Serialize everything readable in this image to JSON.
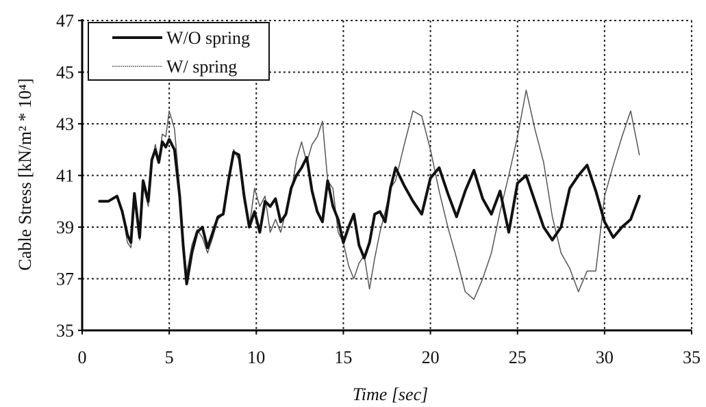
{
  "chart_data": {
    "type": "line",
    "title": "",
    "xlabel": "Time [sec]",
    "ylabel": "Cable Stress [kN/m² * 10⁴]",
    "xlim": [
      0,
      35
    ],
    "ylim": [
      35,
      47
    ],
    "xticks": [
      0,
      5,
      10,
      15,
      20,
      25,
      30,
      35
    ],
    "yticks": [
      35,
      37,
      39,
      41,
      43,
      45,
      47
    ],
    "grid": true,
    "legend_position": "top-left",
    "series": [
      {
        "name": "W/O spring",
        "color": "#111111",
        "style": "thick",
        "x": [
          1.0,
          1.5,
          2.0,
          2.3,
          2.6,
          2.8,
          3.0,
          3.3,
          3.5,
          3.8,
          4.0,
          4.2,
          4.4,
          4.6,
          4.8,
          5.0,
          5.3,
          5.6,
          5.8,
          6.0,
          6.3,
          6.6,
          6.9,
          7.2,
          7.5,
          7.8,
          8.1,
          8.4,
          8.7,
          9.0,
          9.3,
          9.6,
          9.9,
          10.2,
          10.5,
          10.8,
          11.1,
          11.4,
          11.7,
          12.0,
          12.3,
          12.6,
          12.9,
          13.2,
          13.5,
          13.8,
          14.1,
          14.4,
          14.7,
          15.0,
          15.3,
          15.6,
          15.9,
          16.2,
          16.5,
          16.8,
          17.1,
          17.4,
          17.7,
          18.0,
          18.5,
          19.0,
          19.5,
          20.0,
          20.5,
          21.0,
          21.5,
          22.0,
          22.5,
          23.0,
          23.5,
          24.0,
          24.5,
          25.0,
          25.5,
          26.0,
          26.5,
          27.0,
          27.5,
          28.0,
          28.5,
          29.0,
          29.5,
          30.0,
          30.5,
          31.0,
          31.5,
          32.0
        ],
        "y": [
          40.0,
          40.0,
          40.2,
          39.6,
          38.7,
          38.4,
          40.3,
          38.6,
          40.8,
          40.0,
          41.6,
          42.0,
          41.5,
          42.3,
          42.1,
          42.4,
          42.0,
          40.2,
          38.3,
          36.8,
          38.0,
          38.8,
          39.0,
          38.2,
          38.8,
          39.4,
          39.5,
          40.8,
          41.9,
          41.8,
          40.2,
          39.0,
          39.6,
          38.8,
          40.0,
          39.8,
          40.1,
          39.2,
          39.5,
          40.5,
          41.0,
          41.3,
          41.7,
          40.4,
          39.6,
          39.2,
          40.8,
          39.8,
          39.3,
          38.4,
          39.0,
          39.5,
          38.3,
          37.8,
          38.4,
          39.5,
          39.6,
          39.2,
          40.5,
          41.3,
          40.6,
          40.0,
          39.5,
          40.9,
          41.3,
          40.3,
          39.4,
          40.4,
          41.2,
          40.1,
          39.5,
          40.4,
          38.8,
          40.7,
          41.0,
          40.0,
          39.0,
          38.5,
          39.0,
          40.5,
          41.0,
          41.4,
          40.4,
          39.2,
          38.6,
          39.0,
          39.3,
          40.2
        ]
      },
      {
        "name": "W/ spring",
        "color": "#555555",
        "style": "thin",
        "x": [
          1.0,
          1.5,
          2.0,
          2.3,
          2.6,
          2.8,
          3.0,
          3.3,
          3.5,
          3.8,
          4.0,
          4.2,
          4.4,
          4.6,
          4.8,
          5.0,
          5.3,
          5.6,
          5.8,
          6.0,
          6.3,
          6.6,
          6.9,
          7.2,
          7.5,
          7.8,
          8.1,
          8.4,
          8.7,
          9.0,
          9.3,
          9.6,
          9.9,
          10.2,
          10.5,
          10.8,
          11.1,
          11.4,
          11.7,
          12.0,
          12.3,
          12.6,
          12.9,
          13.2,
          13.5,
          13.8,
          14.1,
          14.4,
          14.7,
          15.0,
          15.3,
          15.6,
          15.9,
          16.2,
          16.5,
          16.8,
          17.1,
          17.4,
          17.7,
          18.0,
          18.5,
          19.0,
          19.5,
          20.0,
          20.5,
          21.0,
          21.5,
          22.0,
          22.5,
          23.0,
          23.5,
          24.0,
          24.5,
          25.0,
          25.5,
          26.0,
          26.5,
          27.0,
          27.5,
          28.0,
          28.5,
          29.0,
          29.5,
          30.0,
          30.5,
          31.0,
          31.5,
          32.0
        ],
        "y": [
          40.0,
          40.0,
          40.2,
          39.6,
          38.4,
          38.2,
          40.0,
          38.5,
          40.6,
          39.8,
          41.5,
          42.2,
          41.6,
          42.6,
          42.5,
          43.5,
          42.8,
          40.5,
          38.2,
          37.2,
          38.3,
          38.9,
          38.6,
          38.0,
          38.6,
          39.3,
          39.5,
          40.9,
          42.0,
          41.6,
          40.0,
          39.0,
          40.5,
          39.8,
          40.2,
          38.8,
          39.3,
          38.8,
          39.6,
          40.3,
          41.6,
          42.3,
          41.5,
          42.2,
          42.5,
          43.1,
          40.8,
          40.5,
          38.8,
          38.4,
          37.5,
          37.0,
          37.6,
          37.9,
          36.6,
          37.8,
          38.8,
          39.6,
          40.5,
          40.8,
          42.2,
          43.5,
          43.3,
          42.0,
          40.4,
          39.0,
          37.8,
          36.5,
          36.2,
          37.0,
          38.0,
          39.6,
          41.0,
          42.5,
          44.3,
          42.8,
          41.5,
          39.4,
          38.0,
          37.4,
          36.5,
          37.3,
          37.3,
          40.2,
          41.4,
          42.5,
          43.5,
          41.8
        ]
      }
    ]
  }
}
